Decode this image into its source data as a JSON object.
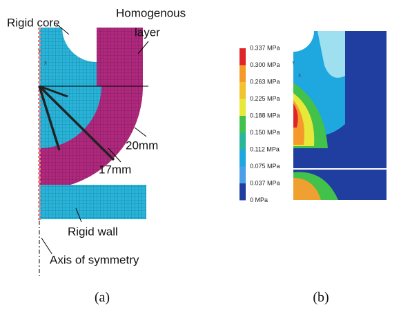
{
  "panel_a": {
    "labels": {
      "rigid_core": "Rigid core",
      "layer_line1": "Homogenous",
      "layer_line2": "layer",
      "r20": "20mm",
      "r17": "17mm",
      "rigid_wall": "Rigid wall",
      "axis": "Axis of symmetry"
    },
    "axis_y": "Y",
    "axis_x": "X",
    "caption": "(a)"
  },
  "panel_b": {
    "colorbar_labels": [
      "0.337 MPa",
      "0.300 MPa",
      "0.263 MPa",
      "0.225 MPa",
      "0.188 MPa",
      "0.150 MPa",
      "0.112 MPa",
      "0.075 MPa",
      "0.037 MPa",
      "0 MPa"
    ],
    "axis_y": "Y",
    "axis_x": "X",
    "caption": "(b)"
  }
}
